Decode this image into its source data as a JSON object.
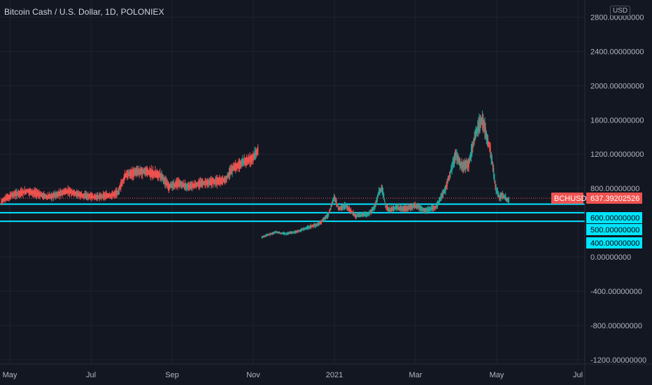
{
  "header": {
    "title": "Bitcoin Cash / U.S. Dollar, 1D, POLONIEX",
    "currency": "USD"
  },
  "colors": {
    "background": "#131722",
    "grid": "#1f2330",
    "up": "#26a69a",
    "down": "#ef5350",
    "hline": "#00e5ff",
    "axis_text": "#b2b5be"
  },
  "chart_data": {
    "type": "candlestick",
    "ylim": [
      -1250,
      3000
    ],
    "y_ticks": [
      {
        "value": 2800,
        "label": "2800.00000000"
      },
      {
        "value": 2400,
        "label": "2400.00000000"
      },
      {
        "value": 2000,
        "label": "2000.00000000"
      },
      {
        "value": 1600,
        "label": "1600.00000000"
      },
      {
        "value": 1200,
        "label": "1200.00000000"
      },
      {
        "value": 800,
        "label": "800.00000000"
      },
      {
        "value": 0,
        "label": "0.00000000"
      },
      {
        "value": -400,
        "label": "-400.00000000"
      },
      {
        "value": -800,
        "label": "-800.00000000"
      },
      {
        "value": -1200,
        "label": "-1200.00000000"
      }
    ],
    "x_ticks": [
      "May",
      "Jul",
      "Sep",
      "Nov",
      "2021",
      "Mar",
      "May",
      "Jul"
    ],
    "horizontal_lines": [
      {
        "value": 600,
        "label": "600.00000000"
      },
      {
        "value": 500,
        "label": "500.00000000"
      },
      {
        "value": 400,
        "label": "400.00000000"
      }
    ],
    "current_price": {
      "symbol": "BCHUSD",
      "value": 637.39202526,
      "label": "637.39202526"
    },
    "segments": [
      {
        "name": "series-2020",
        "color": "down",
        "start_day": 0,
        "points": [
          [
            0,
            650
          ],
          [
            15,
            720
          ],
          [
            40,
            770
          ],
          [
            70,
            700
          ],
          [
            100,
            770
          ],
          [
            120,
            720
          ],
          [
            140,
            700
          ],
          [
            165,
            720
          ],
          [
            175,
            760
          ],
          [
            185,
            950
          ],
          [
            200,
            990
          ],
          [
            215,
            1000
          ],
          [
            230,
            970
          ],
          [
            240,
            950
          ],
          [
            250,
            820
          ],
          [
            265,
            860
          ],
          [
            280,
            820
          ],
          [
            300,
            860
          ],
          [
            320,
            880
          ],
          [
            335,
            900
          ],
          [
            345,
            1020
          ],
          [
            360,
            1100
          ],
          [
            375,
            1150
          ],
          [
            385,
            1250
          ]
        ]
      },
      {
        "name": "series-2020b",
        "color": "up",
        "start_day": 390,
        "points": [
          [
            0,
            230
          ],
          [
            10,
            260
          ],
          [
            20,
            290
          ],
          [
            35,
            270
          ],
          [
            55,
            300
          ],
          [
            70,
            350
          ],
          [
            85,
            380
          ],
          [
            100,
            500
          ],
          [
            108,
            700
          ],
          [
            115,
            560
          ],
          [
            125,
            600
          ],
          [
            140,
            480
          ],
          [
            160,
            500
          ],
          [
            170,
            600
          ],
          [
            175,
            760
          ],
          [
            180,
            800
          ],
          [
            185,
            600
          ],
          [
            190,
            540
          ],
          [
            200,
            580
          ],
          [
            215,
            560
          ],
          [
            230,
            600
          ],
          [
            245,
            540
          ],
          [
            260,
            580
          ],
          [
            275,
            800
          ],
          [
            290,
            1200
          ],
          [
            300,
            1050
          ],
          [
            310,
            1100
          ],
          [
            320,
            1450
          ],
          [
            330,
            1600
          ],
          [
            340,
            1300
          ],
          [
            345,
            1100
          ],
          [
            350,
            800
          ],
          [
            355,
            700
          ],
          [
            360,
            720
          ],
          [
            370,
            650
          ]
        ]
      }
    ]
  }
}
